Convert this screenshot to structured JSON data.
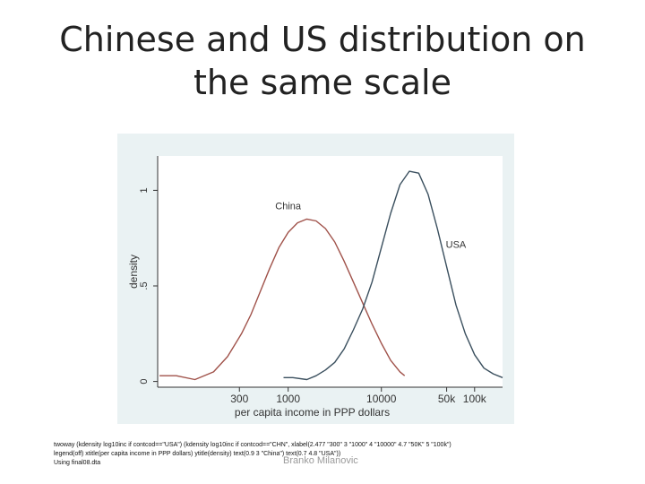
{
  "slide": {
    "title": "Chinese and US distribution on the same scale",
    "footnote": [
      "twoway (kdensity log10inc if contcod==\"USA\") (kdensity log10inc if contcod==\"CHN\", xlabel(2.477 \"300\" 3 \"1000\" 4 \"10000\" 4.7 \"50K\" 5 \"100k\")",
      "legend(off) xtitle(per capita income in PPP dollars) ytitle(density) text(0.9 3 \"China\") text(0.7 4.8 \"USA\"))",
      "Using final08.dta"
    ],
    "author": "Branko Milanovic"
  },
  "chart_data": {
    "type": "line",
    "xlabel": "per capita income in PPP dollars",
    "ylabel": "density",
    "x_scale": "log10",
    "xlim": [
      1.6,
      5.3
    ],
    "ylim": [
      -0.03,
      1.18
    ],
    "xticks": [
      {
        "value": 2.477,
        "label": "300"
      },
      {
        "value": 3,
        "label": "1000"
      },
      {
        "value": 4,
        "label": "10000"
      },
      {
        "value": 4.7,
        "label": "50k"
      },
      {
        "value": 5,
        "label": "100k"
      }
    ],
    "yticks": [
      {
        "value": 0,
        "label": "0"
      },
      {
        "value": 0.5,
        "label": ".5"
      },
      {
        "value": 1,
        "label": "1"
      }
    ],
    "grid": false,
    "legend": "off",
    "annotations": [
      {
        "text": "China",
        "x": 3,
        "y": 0.9
      },
      {
        "text": "USA",
        "x": 4.8,
        "y": 0.7
      }
    ],
    "series": [
      {
        "name": "China",
        "color": "#a0524a",
        "x": [
          1.62,
          1.8,
          2.0,
          2.2,
          2.35,
          2.5,
          2.6,
          2.7,
          2.8,
          2.9,
          3.0,
          3.1,
          3.2,
          3.3,
          3.4,
          3.5,
          3.6,
          3.7,
          3.8,
          3.9,
          4.0,
          4.1,
          4.2,
          4.25
        ],
        "y": [
          0.03,
          0.03,
          0.01,
          0.05,
          0.13,
          0.25,
          0.35,
          0.47,
          0.59,
          0.7,
          0.78,
          0.83,
          0.85,
          0.84,
          0.8,
          0.73,
          0.63,
          0.52,
          0.41,
          0.3,
          0.2,
          0.11,
          0.05,
          0.03
        ]
      },
      {
        "name": "USA",
        "color": "#3a4f5e",
        "x": [
          2.95,
          3.05,
          3.2,
          3.3,
          3.4,
          3.5,
          3.6,
          3.7,
          3.8,
          3.9,
          4.0,
          4.1,
          4.2,
          4.3,
          4.4,
          4.5,
          4.6,
          4.7,
          4.8,
          4.9,
          5.0,
          5.1,
          5.2,
          5.3
        ],
        "y": [
          0.02,
          0.02,
          0.01,
          0.03,
          0.06,
          0.1,
          0.17,
          0.27,
          0.38,
          0.52,
          0.7,
          0.88,
          1.03,
          1.1,
          1.09,
          0.98,
          0.8,
          0.6,
          0.4,
          0.25,
          0.14,
          0.07,
          0.04,
          0.02
        ]
      }
    ],
    "colors": {
      "panel_bg": "#eaf2f3",
      "plot_bg": "#ffffff",
      "axis": "#333333"
    }
  }
}
